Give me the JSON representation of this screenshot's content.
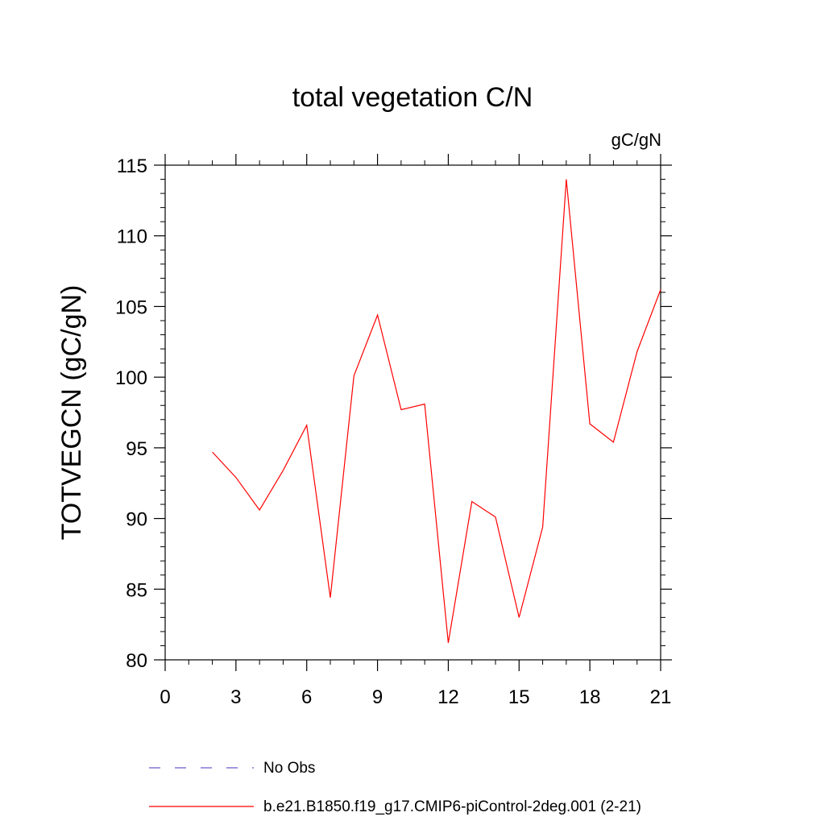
{
  "chart_data": {
    "type": "line",
    "title": "total vegetation C/N",
    "units_label": "gC/gN",
    "xlabel": "",
    "ylabel": "TOTVEGCN  (gC/gN)",
    "xlim": [
      0,
      21
    ],
    "ylim": [
      80,
      115
    ],
    "x_ticks": [
      0,
      3,
      6,
      9,
      12,
      15,
      18,
      21
    ],
    "y_ticks": [
      80,
      85,
      90,
      95,
      100,
      105,
      110,
      115
    ],
    "grid": false,
    "legend_position": "bottom",
    "series": [
      {
        "name": "b.e21.B1850.f19_g17.CMIP6-piControl-2deg.001 (2-21)",
        "color": "#ff0000",
        "dash": "solid",
        "x": [
          2,
          3,
          4,
          5,
          6,
          7,
          8,
          9,
          10,
          11,
          12,
          13,
          14,
          15,
          16,
          17,
          18,
          19,
          20,
          21
        ],
        "y": [
          94.7,
          92.9,
          90.6,
          93.4,
          96.6,
          84.4,
          100.1,
          104.4,
          97.7,
          98.1,
          81.2,
          91.2,
          90.1,
          83.0,
          89.4,
          114.0,
          96.7,
          95.4,
          101.8,
          106.2
        ]
      }
    ],
    "legend": [
      {
        "label": "No Obs",
        "color": "#6a5acd",
        "dash": "dashed"
      },
      {
        "label": "b.e21.B1850.f19_g17.CMIP6-piControl-2deg.001 (2-21)",
        "color": "#ff0000",
        "dash": "solid"
      }
    ]
  }
}
